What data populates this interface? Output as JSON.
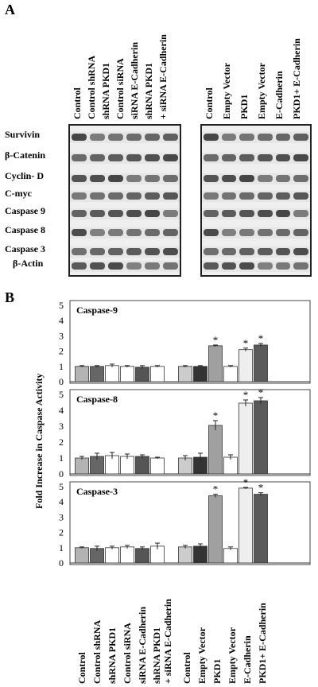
{
  "panel_a": {
    "letter": "A",
    "left_lanes": [
      "Control",
      "Control shRNA",
      "shRNA PKD1",
      "Control siRNA",
      "siRNA E-Cadherin",
      "shRNA PKD1",
      "+ siRNA E-Cadherin"
    ],
    "right_lanes": [
      "Control",
      "Empty Vector",
      "PKD1",
      "Empty Vector",
      "E-Cadherin",
      "PKD1+ E-Cadherin"
    ],
    "proteins": [
      "Survivin",
      "β-Catenin",
      "Cyclin- D",
      "C-myc",
      "Caspase 9",
      "Caspase 8",
      "Caspase 3",
      "β-Actin"
    ]
  },
  "panel_b": {
    "letter": "B",
    "ylabel": "Fold Increase in Caspase Activity",
    "x_labels": [
      "Control",
      "Control shRNA",
      "shRNA PKD1",
      "Control siRNA",
      "siRNA E-Cadherin",
      "shRNA PKD1",
      "+ siRNA E-Cadherin",
      "Control",
      "Empty Vector",
      "PKD1",
      "Empty Vector",
      "E-Cadherin",
      "PKD1+ E-Cadherin"
    ]
  },
  "chart_data": [
    {
      "type": "bar",
      "title": "Caspase-9",
      "categories": [
        "Control",
        "Control shRNA",
        "shRNA PKD1",
        "Control siRNA",
        "siRNA E-Cadherin",
        "shRNA PKD1 + siRNA E-Cadherin",
        "Control",
        "Empty Vector",
        "PKD1",
        "Empty Vector",
        "E-Cadherin",
        "PKD1+ E-Cadherin"
      ],
      "values": [
        1.0,
        1.0,
        1.05,
        1.0,
        0.95,
        1.0,
        1.0,
        1.0,
        2.35,
        1.0,
        2.1,
        2.4
      ],
      "errors": [
        0.05,
        0.05,
        0.1,
        0.05,
        0.1,
        0.05,
        0.05,
        0.05,
        0.05,
        0.05,
        0.1,
        0.1
      ],
      "significant": [
        false,
        false,
        false,
        false,
        false,
        false,
        false,
        false,
        true,
        false,
        true,
        true
      ],
      "ylim": [
        0,
        5
      ],
      "yticks": [
        "0",
        "1",
        "2",
        "3",
        "4",
        "5"
      ],
      "annotation": "*"
    },
    {
      "type": "bar",
      "title": "Caspase-8",
      "categories": [
        "Control",
        "Control shRNA",
        "shRNA PKD1",
        "Control siRNA",
        "siRNA E-Cadherin",
        "shRNA PKD1 + siRNA E-Cadherin",
        "Control",
        "Empty Vector",
        "PKD1",
        "Empty Vector",
        "E-Cadherin",
        "PKD1+ E-Cadherin"
      ],
      "values": [
        1.0,
        1.1,
        1.15,
        1.1,
        1.1,
        1.0,
        1.0,
        1.05,
        3.05,
        1.05,
        4.45,
        4.6
      ],
      "errors": [
        0.1,
        0.2,
        0.2,
        0.15,
        0.1,
        0.05,
        0.15,
        0.25,
        0.3,
        0.15,
        0.2,
        0.2
      ],
      "significant": [
        false,
        false,
        false,
        false,
        false,
        false,
        false,
        false,
        true,
        false,
        true,
        true
      ],
      "ylim": [
        0,
        5
      ],
      "yticks": [
        "0",
        "1",
        "2",
        "3",
        "4",
        "5"
      ],
      "annotation": "*"
    },
    {
      "type": "bar",
      "title": "Caspase-3",
      "categories": [
        "Control",
        "Control shRNA",
        "shRNA PKD1",
        "Control siRNA",
        "siRNA E-Cadherin",
        "shRNA PKD1 + siRNA E-Cadherin",
        "Control",
        "Empty Vector",
        "PKD1",
        "Empty Vector",
        "E-Cadherin",
        "PKD1+ E-Cadherin"
      ],
      "values": [
        1.0,
        0.95,
        1.0,
        1.05,
        0.95,
        1.1,
        1.05,
        1.1,
        4.4,
        0.95,
        4.9,
        4.5
      ],
      "errors": [
        0.05,
        0.15,
        0.1,
        0.1,
        0.1,
        0.2,
        0.1,
        0.15,
        0.1,
        0.1,
        0.05,
        0.1
      ],
      "significant": [
        false,
        false,
        false,
        false,
        false,
        false,
        false,
        false,
        true,
        false,
        true,
        true
      ],
      "ylim": [
        0,
        5
      ],
      "yticks": [
        "0",
        "1",
        "2",
        "3",
        "4",
        "5"
      ],
      "annotation": "*"
    }
  ],
  "colors": {
    "bars": [
      "#b3b3b3",
      "#666666",
      "#ffffff",
      "#ffffff",
      "#555555",
      "#ffffff",
      "#cccccc",
      "#333333",
      "#a0a0a0",
      "#ffffff",
      "#eeeeee",
      "#5a5a5a"
    ],
    "panel_border": "#222222",
    "band": "#555555"
  }
}
